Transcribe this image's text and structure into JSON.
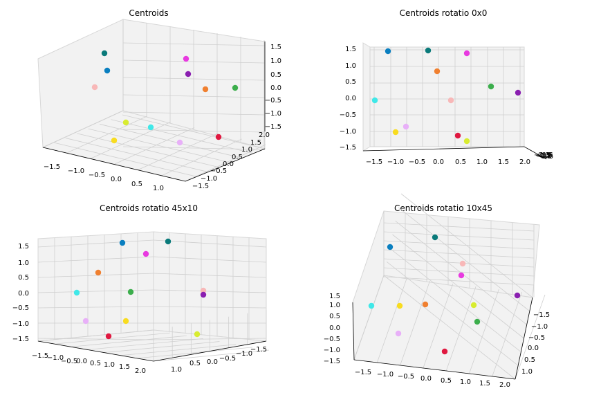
{
  "chart_data": [
    {
      "type": "scatter",
      "title": "Centroids",
      "view": "default",
      "x_ticks": [
        "−1.5",
        "−1.0",
        "−0.5",
        "0.0",
        "0.5",
        "1.0"
      ],
      "y_ticks": [
        "−1.5",
        "−1.0",
        "−0.5",
        "0.0",
        "0.5",
        "1.0",
        "1.5",
        "2.0"
      ],
      "z_ticks": [
        "−1.5",
        "−1.0",
        "−0.5",
        "0.0",
        "0.5",
        "1.0",
        "1.5"
      ],
      "grid": true
    },
    {
      "type": "scatter",
      "title": "Centroids rotatio 0x0",
      "view": "elev 0, azim 0",
      "x_ticks": [
        "−1.5",
        "−1.0",
        "−0.5",
        "0.0",
        "0.5",
        "1.0",
        "1.5",
        "2.0"
      ],
      "y_ticks": [
        "−1.5",
        "−1.0",
        "−0.5",
        "0.0",
        "0.5",
        "1.0",
        "1.5"
      ],
      "z_ticks": [
        "−1.5",
        "−1.0",
        "−0.5",
        "0.0",
        "0.5",
        "1.0",
        "1.5"
      ],
      "grid": true
    },
    {
      "type": "scatter",
      "title": "Centroids rotatio 45x10",
      "view": "elev 10, azim 45",
      "x_ticks": [
        "−1.5",
        "−1.0",
        "−0.5",
        "0.0",
        "0.5",
        "1.0",
        "1.5",
        "2.0"
      ],
      "y_ticks": [
        "1.0",
        "0.5",
        "0.0",
        "−0.5",
        "−1.0",
        "−1.5"
      ],
      "z_ticks": [
        "−1.5",
        "−1.0",
        "−0.5",
        "0.0",
        "0.5",
        "1.0",
        "1.5"
      ],
      "grid": true
    },
    {
      "type": "scatter",
      "title": "Centroids rotatio 10x45",
      "view": "elev 45, azim 10",
      "x_ticks": [
        "−1.5",
        "−1.0",
        "−0.5",
        "0.0",
        "0.5",
        "1.0",
        "1.5",
        "2.0"
      ],
      "y_ticks": [
        "−1.5",
        "−1.0",
        "−0.5",
        "0.0",
        "0.5",
        "1.0"
      ],
      "z_ticks": [
        "−1.5",
        "−1.0",
        "−0.5",
        "0.0",
        "0.5",
        "1.0",
        "1.5"
      ],
      "grid": true
    }
  ],
  "point_colors": {
    "blue": "#0a7fc0",
    "teal": "#0a7a7a",
    "magenta": "#e83ae0",
    "purple": "#8a1fb0",
    "orange": "#f08030",
    "green": "#3cae4c",
    "pink": "#f8b8b8",
    "cyan": "#40e8e8",
    "lime": "#d8ec30",
    "yellow": "#f8dc20",
    "lavender": "#e8b0f8",
    "crimson": "#e01840"
  }
}
